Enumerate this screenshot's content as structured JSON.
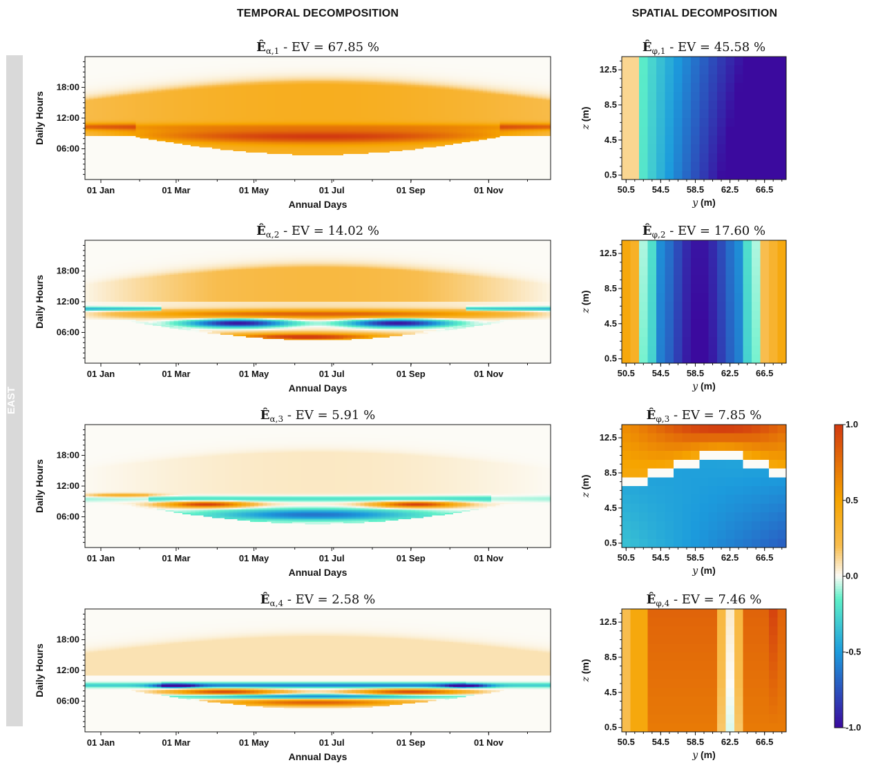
{
  "headers": {
    "temporal": "TEMPORAL DECOMPOSITION",
    "spatial": "SPATIAL DECOMPOSITION"
  },
  "side_label": "EAST",
  "colors": {
    "neg_deep": "#3b0a9e",
    "neg_mid": "#1c9bdc",
    "neg_light": "#5ef0c8",
    "zero": "#fcfbf6",
    "pos_light": "#f8bd4e",
    "pos_mid": "#f6a400",
    "pos_deep": "#d23a10",
    "sidebar": "#d9d9d9"
  },
  "chart_data": [
    {
      "type": "heatmap",
      "panel": "temporal",
      "mode": 1,
      "title_main": "Ê",
      "title_sub": "α,1",
      "title_rest": " - EV = 67.85 %",
      "explained_variance": 67.85,
      "xlabel": "Annual Days",
      "ylabel": "Daily Hours",
      "xticks": [
        "01 Jan",
        "01 Mar",
        "01 May",
        "01 Jul",
        "01 Sep",
        "01 Nov"
      ],
      "yticks": [
        "06:00",
        "12:00",
        "18:00"
      ]
    },
    {
      "type": "heatmap",
      "panel": "temporal",
      "mode": 2,
      "title_main": "Ê",
      "title_sub": "α,2",
      "title_rest": " - EV = 14.02 %",
      "explained_variance": 14.02,
      "xlabel": "Annual Days",
      "ylabel": "Daily Hours",
      "xticks": [
        "01 Jan",
        "01 Mar",
        "01 May",
        "01 Jul",
        "01 Sep",
        "01 Nov"
      ],
      "yticks": [
        "06:00",
        "12:00",
        "18:00"
      ]
    },
    {
      "type": "heatmap",
      "panel": "temporal",
      "mode": 3,
      "title_main": "Ê",
      "title_sub": "α,3",
      "title_rest": " - EV = 5.91 %",
      "explained_variance": 5.91,
      "xlabel": "Annual Days",
      "ylabel": "Daily Hours",
      "xticks": [
        "01 Jan",
        "01 Mar",
        "01 May",
        "01 Jul",
        "01 Sep",
        "01 Nov"
      ],
      "yticks": [
        "06:00",
        "12:00",
        "18:00"
      ]
    },
    {
      "type": "heatmap",
      "panel": "temporal",
      "mode": 4,
      "title_main": "Ê",
      "title_sub": "α,4",
      "title_rest": " - EV = 2.58 %",
      "explained_variance": 2.58,
      "xlabel": "Annual Days",
      "ylabel": "Daily Hours",
      "xticks": [
        "01 Jan",
        "01 Mar",
        "01 May",
        "01 Jul",
        "01 Sep",
        "01 Nov"
      ],
      "yticks": [
        "06:00",
        "12:00",
        "18:00"
      ]
    },
    {
      "type": "heatmap",
      "panel": "spatial",
      "mode": 1,
      "title_main": "Ê",
      "title_sub": "φ,1",
      "title_rest": " - EV = 45.58 %",
      "explained_variance": 45.58,
      "xlabel_var": "y",
      "xlabel_unit": " (m)",
      "ylabel_var": "z",
      "ylabel_unit": " (m)",
      "xticks": [
        "50.5",
        "54.5",
        "58.5",
        "62.5",
        "66.5"
      ],
      "yticks": [
        "0.5",
        "4.5",
        "8.5",
        "12.5"
      ]
    },
    {
      "type": "heatmap",
      "panel": "spatial",
      "mode": 2,
      "title_main": "Ê",
      "title_sub": "φ,2",
      "title_rest": " - EV = 17.60 %",
      "explained_variance": 17.6,
      "xlabel_var": "y",
      "xlabel_unit": " (m)",
      "ylabel_var": "z",
      "ylabel_unit": " (m)",
      "xticks": [
        "50.5",
        "54.5",
        "58.5",
        "62.5",
        "66.5"
      ],
      "yticks": [
        "0.5",
        "4.5",
        "8.5",
        "12.5"
      ]
    },
    {
      "type": "heatmap",
      "panel": "spatial",
      "mode": 3,
      "title_main": "Ê",
      "title_sub": "φ,3",
      "title_rest": " - EV = 7.85 %",
      "explained_variance": 7.85,
      "xlabel_var": "y",
      "xlabel_unit": " (m)",
      "ylabel_var": "z",
      "ylabel_unit": " (m)",
      "xticks": [
        "50.5",
        "54.5",
        "58.5",
        "62.5",
        "66.5"
      ],
      "yticks": [
        "0.5",
        "4.5",
        "8.5",
        "12.5"
      ]
    },
    {
      "type": "heatmap",
      "panel": "spatial",
      "mode": 4,
      "title_main": "Ê",
      "title_sub": "φ,4",
      "title_rest": " - EV = 7.46 %",
      "explained_variance": 7.46,
      "xlabel_var": "y",
      "xlabel_unit": " (m)",
      "ylabel_var": "z",
      "ylabel_unit": " (m)",
      "xticks": [
        "50.5",
        "54.5",
        "58.5",
        "62.5",
        "66.5"
      ],
      "yticks": [
        "0.5",
        "4.5",
        "8.5",
        "12.5"
      ]
    }
  ],
  "colorbar": {
    "ticks": [
      "1.0",
      "0.5",
      "0.0",
      "-0.5",
      "-1.0"
    ],
    "range": [
      -1.0,
      1.0
    ]
  }
}
